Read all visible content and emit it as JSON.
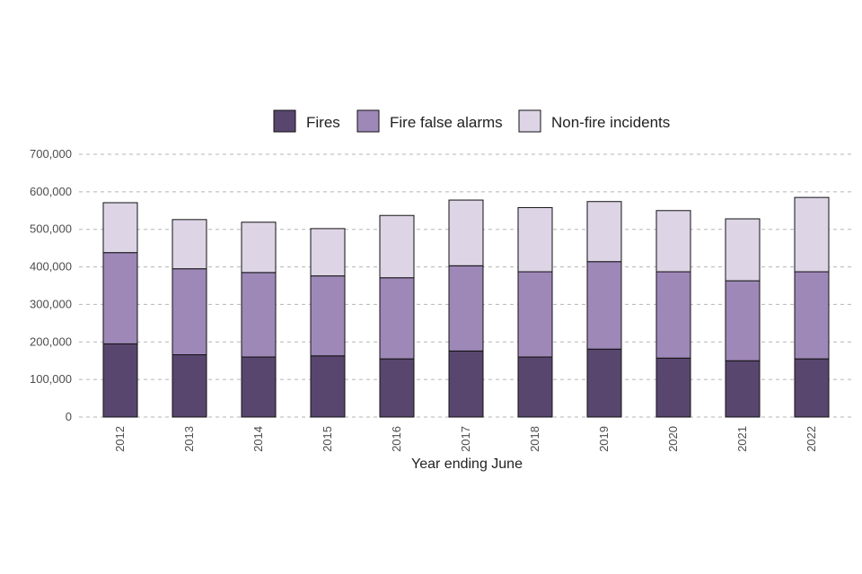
{
  "chart_data": {
    "type": "bar",
    "stacked": true,
    "xlabel": "Year ending June",
    "ylabel": "",
    "ylim": [
      0,
      700000
    ],
    "y_ticks": [
      0,
      100000,
      200000,
      300000,
      400000,
      500000,
      600000,
      700000
    ],
    "y_tick_labels": [
      "0",
      "100,000",
      "200,000",
      "300,000",
      "400,000",
      "500,000",
      "600,000",
      "700,000"
    ],
    "grid": "horizontal dashed",
    "legend_position": "top",
    "categories": [
      "2012",
      "2013",
      "2014",
      "2015",
      "2016",
      "2017",
      "2018",
      "2019",
      "2020",
      "2021",
      "2022"
    ],
    "series": [
      {
        "name": "Fires",
        "color": "#59466f",
        "values": [
          195000,
          166000,
          160000,
          163000,
          155000,
          176000,
          160000,
          181000,
          157000,
          150000,
          155000
        ]
      },
      {
        "name": "Fire false alarms",
        "color": "#9e88b8",
        "values": [
          243000,
          229000,
          225000,
          213000,
          216000,
          227000,
          227000,
          233000,
          230000,
          213000,
          232000
        ]
      },
      {
        "name": "Non-fire incidents",
        "color": "#ddd4e6",
        "values": [
          133000,
          131000,
          134000,
          126000,
          166000,
          175000,
          171000,
          160000,
          163000,
          165000,
          198000
        ]
      }
    ]
  }
}
